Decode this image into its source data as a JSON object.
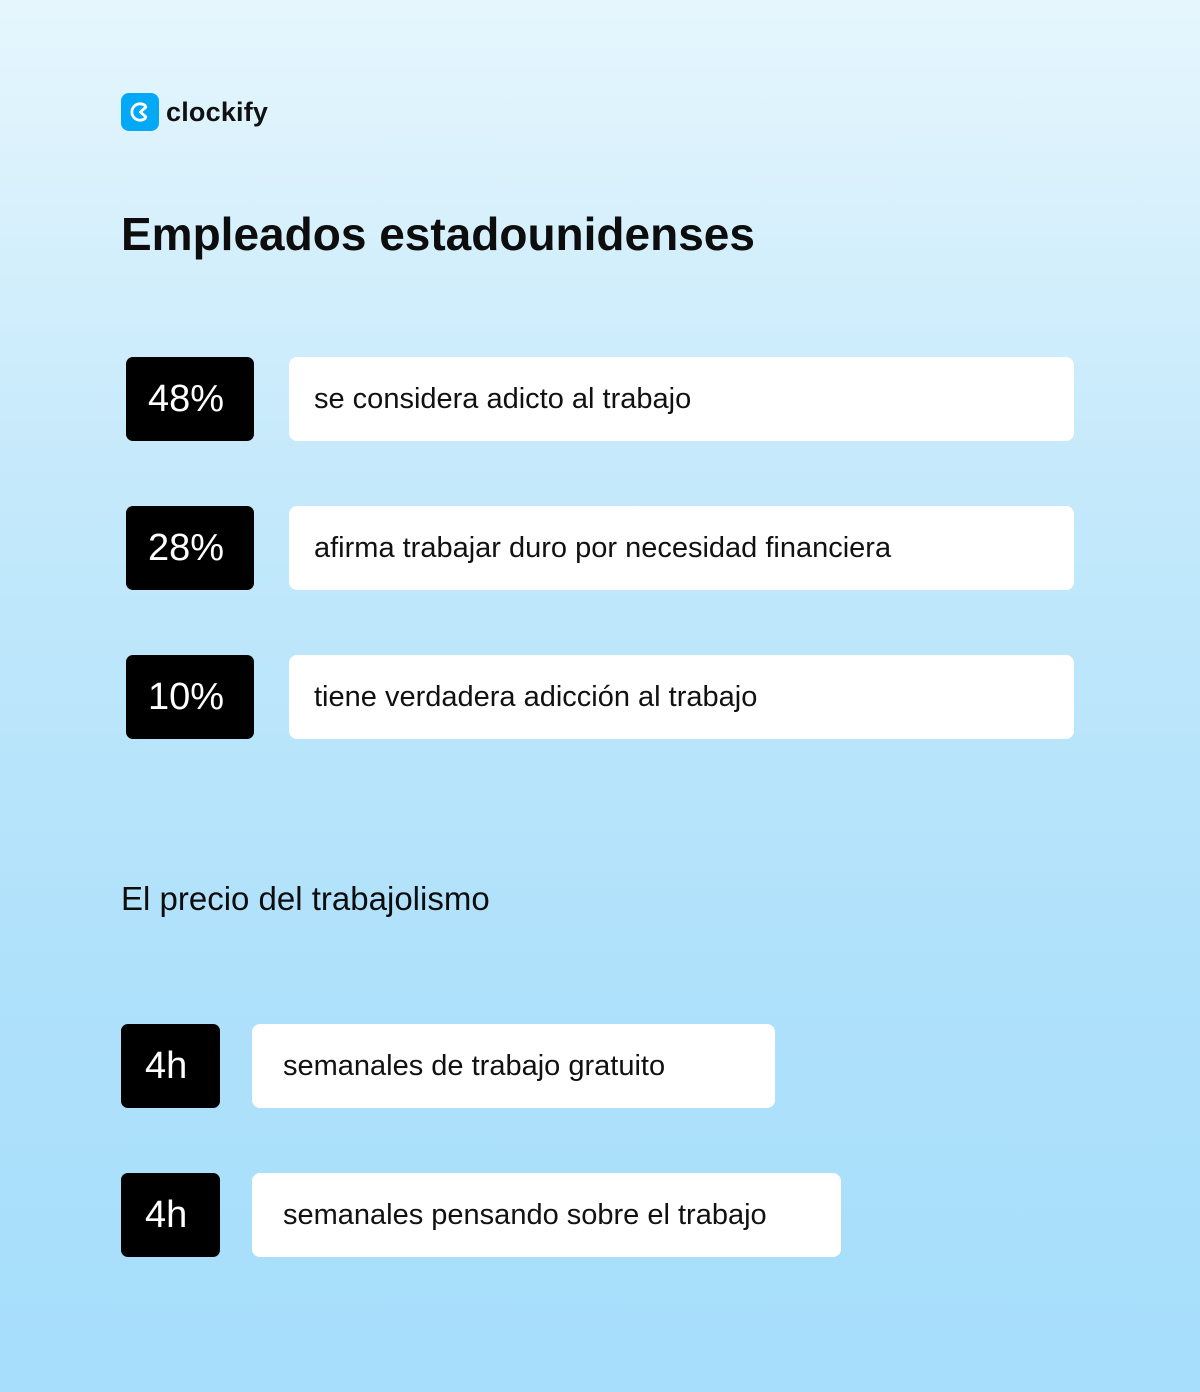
{
  "brand": {
    "name": "clockify",
    "logo_icon": "clockify-logo-icon",
    "accent_color": "#03a9f4"
  },
  "title": "Empleados estadounidenses",
  "stats": [
    {
      "value": "48%",
      "text": "se considera adicto al trabajo"
    },
    {
      "value": "28%",
      "text": "afirma trabajar duro por necesidad financiera"
    },
    {
      "value": "10%",
      "text": "tiene verdadera adicción al trabajo"
    }
  ],
  "section": {
    "title": "El precio del trabajolismo",
    "items": [
      {
        "value": "4h",
        "text": "semanales de trabajo gratuito"
      },
      {
        "value": "4h",
        "text": "semanales pensando sobre el trabajo"
      }
    ]
  }
}
